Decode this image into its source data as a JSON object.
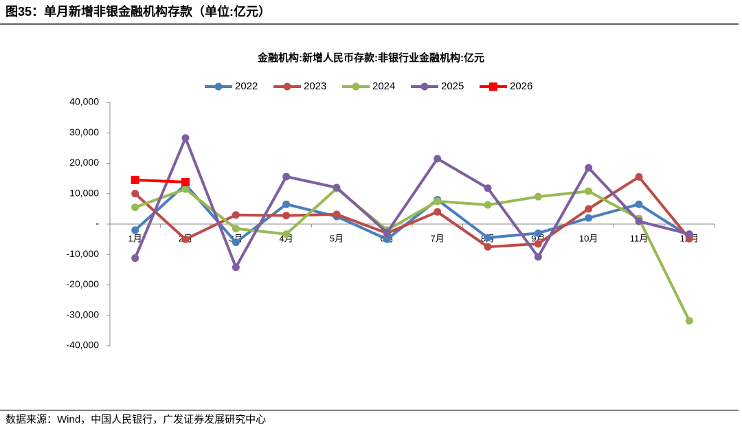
{
  "header": {
    "title": "图35：单月新增非银金融机构存款（单位:亿元）"
  },
  "footer": {
    "source": "数据来源：Wind，中国人民银行，广发证券发展研究中心"
  },
  "chart_data": {
    "type": "line",
    "title": "金融机构:新增人民币存款:非银行业金融机构:亿元",
    "categories": [
      "1月",
      "2月",
      "3月",
      "4月",
      "5月",
      "6月",
      "7月",
      "8月",
      "9月",
      "10月",
      "11月",
      "12月"
    ],
    "ylim": [
      -40000,
      40000
    ],
    "yticks": [
      {
        "value": -40000,
        "label": "-40,000"
      },
      {
        "value": -30000,
        "label": "-30,000"
      },
      {
        "value": -20000,
        "label": "-20,000"
      },
      {
        "value": -10000,
        "label": "-10,000"
      },
      {
        "value": 0,
        "label": "-"
      },
      {
        "value": 10000,
        "label": "10,000"
      },
      {
        "value": 20000,
        "label": "20,000"
      },
      {
        "value": 30000,
        "label": "30,000"
      },
      {
        "value": 40000,
        "label": "40,000"
      }
    ],
    "grid": false,
    "legend": "top",
    "series": [
      {
        "name": "2022",
        "color": "#4a7ebb",
        "marker": "circle",
        "values": [
          -2000,
          13000,
          -6000,
          6500,
          2500,
          -5000,
          8000,
          -4500,
          -3000,
          2000,
          6500,
          -4000
        ]
      },
      {
        "name": "2023",
        "color": "#be4b48",
        "marker": "circle",
        "values": [
          10000,
          -5000,
          3000,
          2800,
          3200,
          -3000,
          4000,
          -7500,
          -6500,
          5000,
          15500,
          -4800
        ]
      },
      {
        "name": "2024",
        "color": "#98b954",
        "marker": "circle",
        "values": [
          5500,
          11500,
          -1500,
          -3300,
          11700,
          -2000,
          7500,
          6300,
          9000,
          10800,
          1800,
          -31800
        ]
      },
      {
        "name": "2025",
        "color": "#7d5fa0",
        "marker": "circle",
        "values": [
          -11200,
          28300,
          -14200,
          15600,
          12000,
          -2800,
          21500,
          11800,
          -10800,
          18500,
          900,
          -3300
        ]
      },
      {
        "name": "2026",
        "color": "#ff0000",
        "marker": "square",
        "values": [
          14500,
          13800,
          null,
          null,
          null,
          null,
          null,
          null,
          null,
          null,
          null,
          null
        ]
      }
    ]
  }
}
